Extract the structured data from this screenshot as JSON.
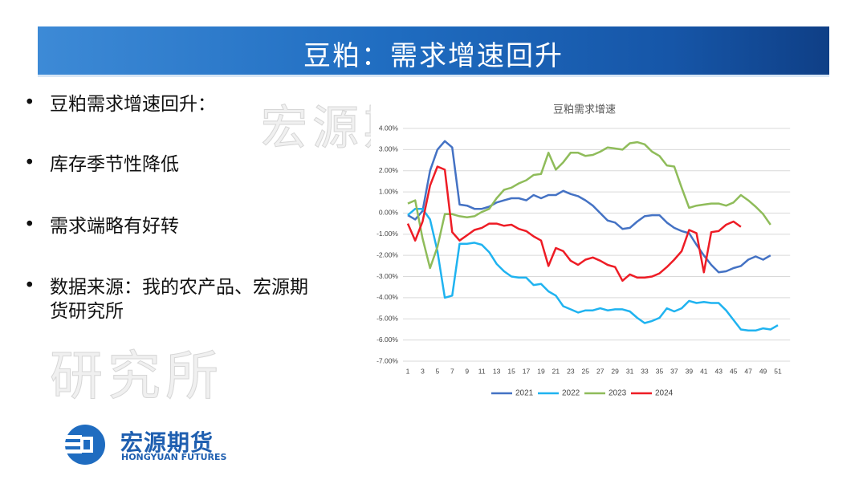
{
  "header": {
    "title": "豆粕：需求增速回升"
  },
  "bullets": [
    "豆粕需求增速回升：",
    "库存季节性降低",
    "需求端略有好转",
    "数据来源：我的农产品、宏源期货研究所"
  ],
  "watermark": [
    "宏源期货",
    "研究所"
  ],
  "logo": {
    "name": "宏源期货",
    "english": "HONGYUAN FUTURES"
  },
  "chart_data": {
    "type": "line",
    "title": "豆粕需求增速",
    "categories": [
      "1",
      null,
      "3",
      null,
      "5",
      null,
      "7",
      null,
      "9",
      null,
      "11",
      null,
      "13",
      null,
      "15",
      null,
      "17",
      null,
      "19",
      null,
      "21",
      null,
      "23",
      null,
      "25",
      null,
      "27",
      null,
      "29",
      null,
      "31",
      null,
      "33",
      null,
      "35",
      null,
      "37",
      null,
      "39",
      null,
      "41",
      null,
      "43",
      null,
      "45",
      null,
      "47",
      null,
      "49",
      null,
      "51",
      null
    ],
    "ylim": [
      -7,
      4
    ],
    "yticks": [
      {
        "value": 4,
        "label": "4.00%"
      },
      {
        "value": 3,
        "label": "3.00%"
      },
      {
        "value": 2,
        "label": "2.00%"
      },
      {
        "value": 1,
        "label": "1.00%"
      },
      {
        "value": 0,
        "label": "0.00%"
      },
      {
        "value": -1,
        "label": "-1.00%"
      },
      {
        "value": -2,
        "label": "-2.00%"
      },
      {
        "value": -3,
        "label": "-3.00%"
      },
      {
        "value": -4,
        "label": "-4.00%"
      },
      {
        "value": -5,
        "label": "-5.00%"
      },
      {
        "value": -6,
        "label": "-6.00%"
      },
      {
        "value": -7,
        "label": "-7.00%"
      }
    ],
    "grid": true,
    "legend": "bottom",
    "series": [
      {
        "name": "2021",
        "color": "#4472c4",
        "values": [
          -0.1,
          -0.3,
          0.1,
          2.0,
          3.0,
          3.4,
          3.1,
          0.4,
          0.35,
          0.2,
          0.2,
          0.3,
          0.5,
          0.6,
          0.7,
          0.7,
          0.6,
          0.85,
          0.7,
          0.85,
          0.85,
          1.05,
          0.9,
          0.8,
          0.6,
          0.35,
          0.0,
          -0.35,
          -0.45,
          -0.75,
          -0.7,
          -0.4,
          -0.15,
          -0.1,
          -0.1,
          -0.45,
          -0.7,
          -0.85,
          -0.95,
          -1.5,
          -2.0,
          -2.45,
          -2.8,
          -2.75,
          -2.6,
          -2.5,
          -2.2,
          -2.05,
          -2.2,
          -2.0,
          null,
          null
        ]
      },
      {
        "name": "2022",
        "color": "#1fb3f0",
        "values": [
          -0.1,
          0.2,
          0.2,
          -0.3,
          -1.8,
          -4.0,
          -3.9,
          -1.45,
          -1.45,
          -1.4,
          -1.5,
          -1.85,
          -2.4,
          -2.75,
          -3.0,
          -3.05,
          -3.05,
          -3.4,
          -3.35,
          -3.7,
          -3.9,
          -4.4,
          -4.55,
          -4.7,
          -4.6,
          -4.6,
          -4.5,
          -4.6,
          -4.55,
          -4.55,
          -4.65,
          -4.95,
          -5.2,
          -5.1,
          -4.95,
          -4.5,
          -4.65,
          -4.5,
          -4.15,
          -4.25,
          -4.2,
          -4.25,
          -4.25,
          -4.6,
          -5.05,
          -5.5,
          -5.55,
          -5.55,
          -5.45,
          -5.5,
          -5.3,
          null
        ]
      },
      {
        "name": "2023",
        "color": "#8fbc5a",
        "values": [
          0.45,
          0.6,
          -1.2,
          -2.6,
          -1.6,
          -0.05,
          -0.05,
          -0.15,
          -0.2,
          -0.15,
          0.05,
          0.2,
          0.7,
          1.1,
          1.2,
          1.4,
          1.55,
          1.8,
          1.85,
          2.85,
          2.05,
          2.4,
          2.85,
          2.85,
          2.7,
          2.75,
          2.9,
          3.1,
          3.05,
          3.0,
          3.3,
          3.35,
          3.25,
          2.9,
          2.7,
          2.25,
          2.2,
          1.2,
          0.25,
          0.35,
          0.4,
          0.45,
          0.45,
          0.35,
          0.5,
          0.85,
          0.6,
          0.3,
          -0.05,
          -0.55,
          null,
          null
        ]
      },
      {
        "name": "2024",
        "color": "#ee1c25",
        "values": [
          -0.5,
          -1.3,
          -0.4,
          1.3,
          2.2,
          2.05,
          -0.9,
          -1.3,
          -1.05,
          -0.8,
          -0.7,
          -0.5,
          -0.5,
          -0.6,
          -0.55,
          -0.75,
          -0.85,
          -1.1,
          -1.3,
          -2.5,
          -1.65,
          -1.8,
          -2.25,
          -2.45,
          -2.2,
          -2.1,
          -2.25,
          -2.45,
          -2.55,
          -3.2,
          -2.9,
          -3.05,
          -3.05,
          -3.0,
          -2.85,
          -2.55,
          -2.2,
          -1.8,
          -0.8,
          -0.95,
          -2.8,
          -0.9,
          -0.85,
          -0.55,
          -0.4,
          -0.65,
          null,
          null,
          null,
          null,
          null,
          null
        ]
      }
    ]
  }
}
